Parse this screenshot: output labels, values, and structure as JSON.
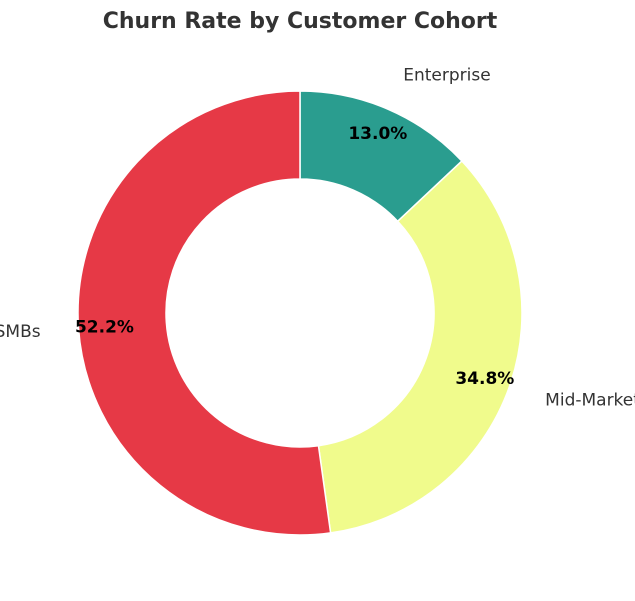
{
  "chart_data": {
    "type": "pie",
    "title": "Churn Rate by Customer Cohort",
    "donut": true,
    "start_angle_deg": 90,
    "direction": "clockwise",
    "slices": [
      {
        "label": "Enterprise",
        "value": 13.0,
        "pct_label": "13.0%",
        "color": "#2a9d8f"
      },
      {
        "label": "Mid-Market",
        "value": 34.8,
        "pct_label": "34.8%",
        "color": "#f0fb8c"
      },
      {
        "label": "SMBs",
        "value": 52.2,
        "pct_label": "52.2%",
        "color": "#e63946"
      }
    ]
  }
}
